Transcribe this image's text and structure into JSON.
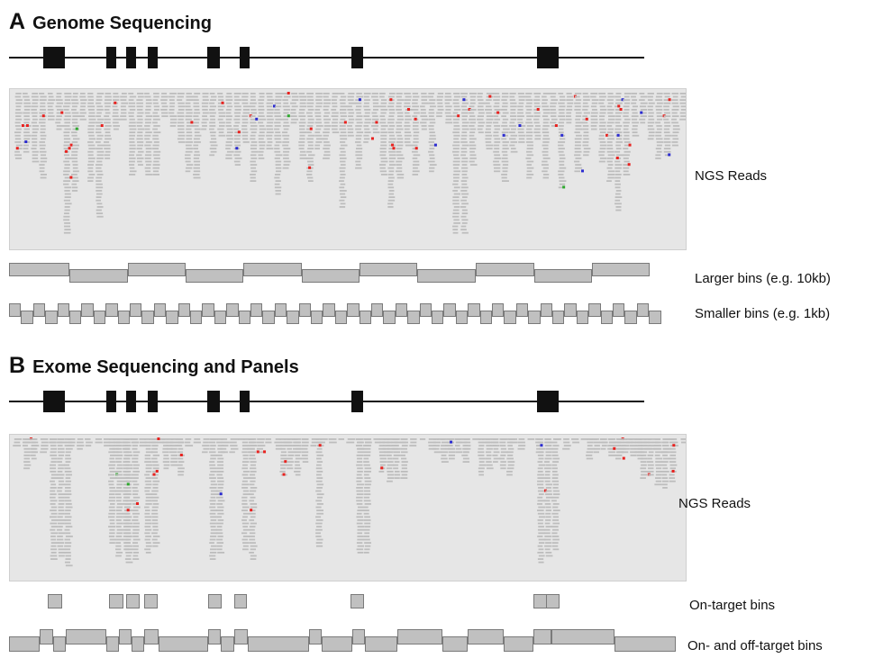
{
  "panel_a": {
    "letter": "A",
    "title": "Genome Sequencing",
    "reads_label": "NGS Reads",
    "large_bins_label": "Larger bins (e.g. 10kb)",
    "small_bins_label": "Smaller bins (e.g. 1kb)"
  },
  "panel_b": {
    "letter": "B",
    "title": "Exome Sequencing and Panels",
    "reads_label": "NGS Reads",
    "on_target_label": "On-target bins",
    "on_off_target_label": "On- and off-target bins"
  },
  "colors": {
    "exon": "#111111",
    "read": "#bdbdbd",
    "mismatch_red": "#e8221f",
    "mismatch_blue": "#2b2bd0",
    "mismatch_green": "#2ea82e",
    "bin_fill": "#c0c0c0",
    "reads_background": "#e6e6e6"
  }
}
